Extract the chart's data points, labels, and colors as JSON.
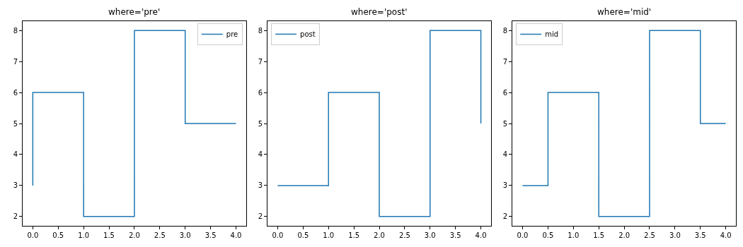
{
  "chart_data": [
    {
      "type": "line",
      "title": "where='pre'",
      "series": [
        {
          "name": "pre",
          "color": "#1f77b4",
          "x": [
            0,
            0,
            1,
            1,
            2,
            2,
            3,
            3,
            4
          ],
          "values": [
            3,
            6,
            6,
            2,
            2,
            8,
            8,
            5,
            5
          ]
        }
      ],
      "xlim": [
        -0.2,
        4.2
      ],
      "ylim": [
        1.7,
        8.3
      ],
      "xticks": [
        {
          "value": 0,
          "label": "0.0"
        },
        {
          "value": 0.5,
          "label": "0.5"
        },
        {
          "value": 1,
          "label": "1.0"
        },
        {
          "value": 1.5,
          "label": "1.5"
        },
        {
          "value": 2,
          "label": "2.0"
        },
        {
          "value": 2.5,
          "label": "2.5"
        },
        {
          "value": 3,
          "label": "3.0"
        },
        {
          "value": 3.5,
          "label": "3.5"
        },
        {
          "value": 4,
          "label": "4.0"
        }
      ],
      "yticks": [
        2,
        3,
        4,
        5,
        6,
        7,
        8
      ],
      "legend": "top right"
    },
    {
      "type": "line",
      "title": "where='post'",
      "series": [
        {
          "name": "post",
          "color": "#1f77b4",
          "x": [
            0,
            1,
            1,
            2,
            2,
            3,
            3,
            4,
            4
          ],
          "values": [
            3,
            3,
            6,
            6,
            2,
            2,
            8,
            8,
            5
          ]
        }
      ],
      "xlim": [
        -0.2,
        4.2
      ],
      "ylim": [
        1.7,
        8.3
      ],
      "xticks": [
        {
          "value": 0,
          "label": "0.0"
        },
        {
          "value": 0.5,
          "label": "0.5"
        },
        {
          "value": 1,
          "label": "1.0"
        },
        {
          "value": 1.5,
          "label": "1.5"
        },
        {
          "value": 2,
          "label": "2.0"
        },
        {
          "value": 2.5,
          "label": "2.5"
        },
        {
          "value": 3,
          "label": "3.0"
        },
        {
          "value": 3.5,
          "label": "3.5"
        },
        {
          "value": 4,
          "label": "4.0"
        }
      ],
      "yticks": [
        2,
        3,
        4,
        5,
        6,
        7,
        8
      ],
      "legend": "top left"
    },
    {
      "type": "line",
      "title": "where='mid'",
      "series": [
        {
          "name": "mid",
          "color": "#1f77b4",
          "x": [
            0,
            0.5,
            0.5,
            1.5,
            1.5,
            2.5,
            2.5,
            3.5,
            3.5,
            4
          ],
          "values": [
            3,
            3,
            6,
            6,
            2,
            2,
            8,
            8,
            5,
            5
          ]
        }
      ],
      "xlim": [
        -0.2,
        4.2
      ],
      "ylim": [
        1.7,
        8.3
      ],
      "xticks": [
        {
          "value": 0,
          "label": "0.0"
        },
        {
          "value": 0.5,
          "label": "0.5"
        },
        {
          "value": 1,
          "label": "1.0"
        },
        {
          "value": 1.5,
          "label": "1.5"
        },
        {
          "value": 2,
          "label": "2.0"
        },
        {
          "value": 2.5,
          "label": "2.5"
        },
        {
          "value": 3,
          "label": "3.0"
        },
        {
          "value": 3.5,
          "label": "3.5"
        },
        {
          "value": 4,
          "label": "4.0"
        }
      ],
      "yticks": [
        2,
        3,
        4,
        5,
        6,
        7,
        8
      ],
      "legend": "top left"
    }
  ]
}
